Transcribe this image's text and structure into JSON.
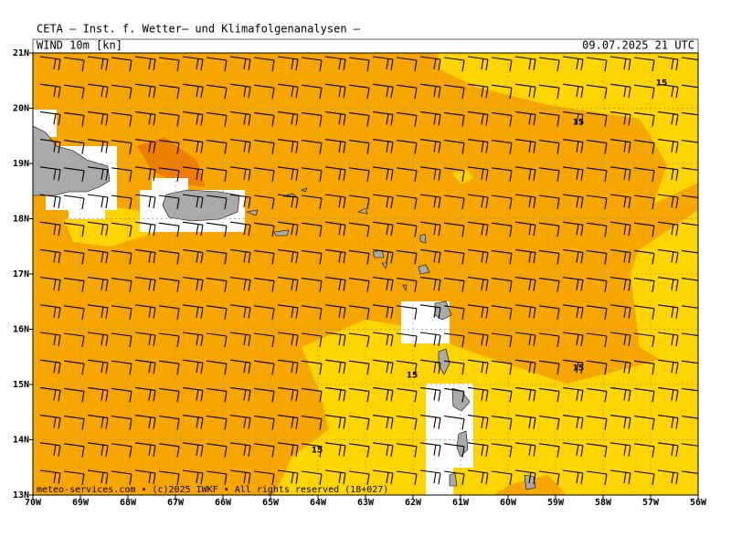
{
  "header": {
    "title": "CETA — Inst. f. Wetter— und Klimafolgenanalysen —",
    "parameter": "WIND 10m [kn]",
    "valid_time": "09.07.2025 21 UTC"
  },
  "map": {
    "lat_labels": [
      "21N",
      "20N",
      "19N",
      "18N",
      "17N",
      "16N",
      "15N",
      "14N",
      "13N"
    ],
    "lon_labels": [
      "70W",
      "69W",
      "68W",
      "67W",
      "66W",
      "65W",
      "64W",
      "63W",
      "62W",
      "61W",
      "60W",
      "59W",
      "58W",
      "57W",
      "56W"
    ],
    "contour_labels": [
      "15",
      "15",
      "15",
      "15",
      "15"
    ]
  },
  "footer": {
    "credit": "meteo-services.com • (c)2025 IWKF • All rights reserved (18+027)"
  }
}
